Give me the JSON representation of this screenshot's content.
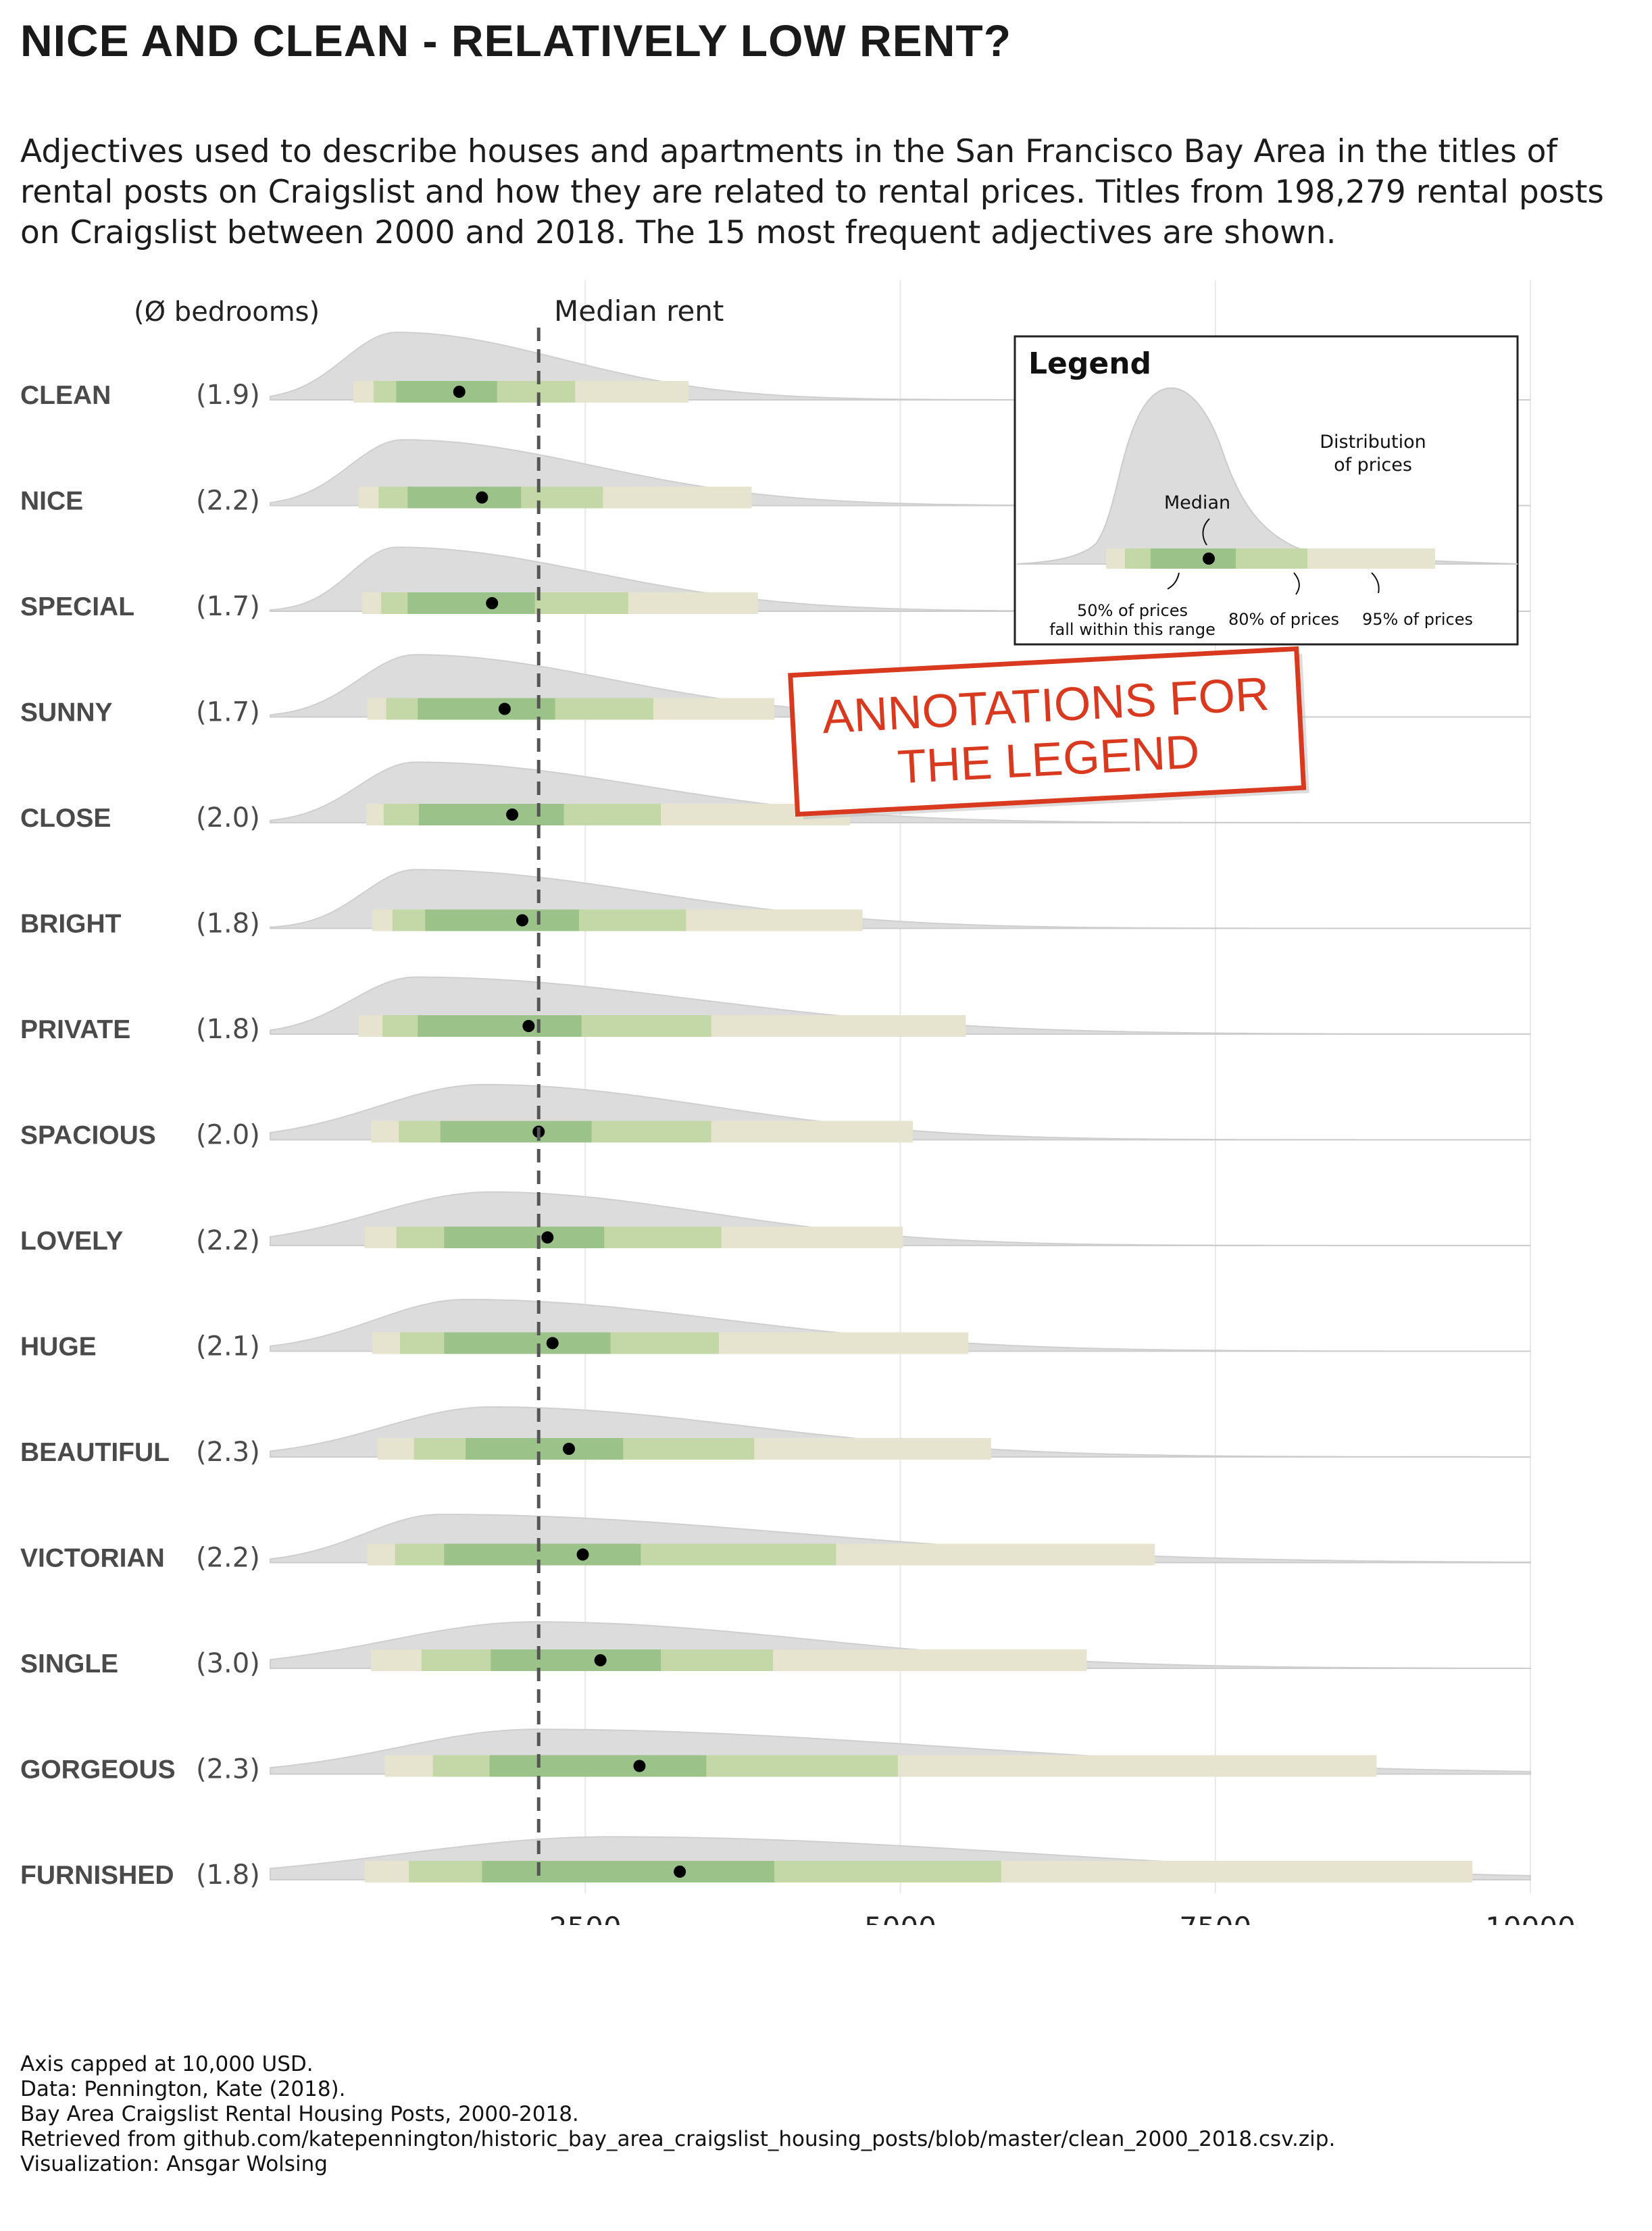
{
  "title": "NICE AND CLEAN - RELATIVELY LOW RENT?",
  "subtitle": "Adjectives used to describe houses and apartments in the San Francisco Bay Area in the titles of rental posts on Craigslist and how they are related to rental prices. Titles from 198,279 rental posts on Craigslist between 2000 and 2018. The 15 most frequent adjectives are shown.",
  "column_header": "(Ø bedrooms)",
  "median_label": "Median rent",
  "legend": {
    "title": "Legend",
    "distribution_label": [
      "Distribution",
      "of prices"
    ],
    "median_label": "Median",
    "range50_label": [
      "50% of prices",
      "fall within this range"
    ],
    "range80_label": "80% of prices",
    "range95_label": "95% of prices"
  },
  "stamp": {
    "lines": [
      "ANNOTATIONS FOR",
      "THE LEGEND"
    ],
    "color": "#d93a1f"
  },
  "colors": {
    "range95": "#e6e4cf",
    "range80": "#c3d7a7",
    "range50": "#9bc289",
    "density": "#dcdcdc",
    "median_line": "#555555",
    "grid": "#e8e8e8"
  },
  "caption": [
    "Axis capped at 10,000 USD.",
    "Data: Pennington, Kate (2018).",
    "Bay Area Craigslist Rental Housing Posts, 2000-2018.",
    "Retrieved from github.com/katepennington/historic_bay_area_craigslist_housing_posts/blob/master/clean_2000_2018.csv.zip.",
    "Visualization: Ansgar Wolsing"
  ],
  "chart_data": {
    "type": "interval-density",
    "xlabel": "",
    "ylabel": "",
    "xlim": [
      0,
      10000
    ],
    "x_ticks": [
      2500,
      5000,
      7500,
      10000
    ],
    "tick_labels": [
      "2500",
      "5000",
      "7500",
      "10000"
    ],
    "grid": true,
    "overall_median": 2130,
    "rows": [
      {
        "label": "CLEAN",
        "bedrooms": "(1.9)",
        "range95": [
          660,
          3320
        ],
        "range80": [
          820,
          2420
        ],
        "range50": [
          1000,
          1800
        ],
        "median": 1500,
        "peak": 1000
      },
      {
        "label": "NICE",
        "bedrooms": "(2.2)",
        "range95": [
          700,
          3820
        ],
        "range80": [
          860,
          2640
        ],
        "range50": [
          1090,
          1990
        ],
        "median": 1680,
        "peak": 1050
      },
      {
        "label": "SPECIAL",
        "bedrooms": "(1.7)",
        "range95": [
          730,
          3870
        ],
        "range80": [
          880,
          2840
        ],
        "range50": [
          1090,
          2100
        ],
        "median": 1760,
        "peak": 1000
      },
      {
        "label": "SUNNY",
        "bedrooms": "(1.7)",
        "range95": [
          770,
          4000
        ],
        "range80": [
          920,
          3040
        ],
        "range50": [
          1170,
          2260
        ],
        "median": 1860,
        "peak": 1150
      },
      {
        "label": "CLOSE",
        "bedrooms": "(2.0)",
        "range95": [
          760,
          4600
        ],
        "range80": [
          900,
          3100
        ],
        "range50": [
          1180,
          2330
        ],
        "median": 1920,
        "peak": 1150
      },
      {
        "label": "BRIGHT",
        "bedrooms": "(1.8)",
        "range95": [
          810,
          4700
        ],
        "range80": [
          970,
          3300
        ],
        "range50": [
          1230,
          2450
        ],
        "median": 2000,
        "peak": 1150
      },
      {
        "label": "PRIVATE",
        "bedrooms": "(1.8)",
        "range95": [
          700,
          5520
        ],
        "range80": [
          890,
          3500
        ],
        "range50": [
          1170,
          2470
        ],
        "median": 2050,
        "peak": 1150
      },
      {
        "label": "SPACIOUS",
        "bedrooms": "(2.0)",
        "range95": [
          800,
          5100
        ],
        "range80": [
          1020,
          3500
        ],
        "range50": [
          1350,
          2550
        ],
        "median": 2130,
        "peak": 1700
      },
      {
        "label": "LOVELY",
        "bedrooms": "(2.2)",
        "range95": [
          750,
          5020
        ],
        "range80": [
          1000,
          3580
        ],
        "range50": [
          1380,
          2650
        ],
        "median": 2200,
        "peak": 1750
      },
      {
        "label": "HUGE",
        "bedrooms": "(2.1)",
        "range95": [
          810,
          5540
        ],
        "range80": [
          1030,
          3560
        ],
        "range50": [
          1380,
          2700
        ],
        "median": 2240,
        "peak": 1550
      },
      {
        "label": "BEAUTIFUL",
        "bedrooms": "(2.3)",
        "range95": [
          850,
          5720
        ],
        "range80": [
          1140,
          3840
        ],
        "range50": [
          1550,
          2800
        ],
        "median": 2370,
        "peak": 1750
      },
      {
        "label": "VICTORIAN",
        "bedrooms": "(2.2)",
        "range95": [
          770,
          7020
        ],
        "range80": [
          990,
          4490
        ],
        "range50": [
          1380,
          2940
        ],
        "median": 2480,
        "peak": 1350
      },
      {
        "label": "SINGLE",
        "bedrooms": "(3.0)",
        "range95": [
          800,
          6480
        ],
        "range80": [
          1200,
          3990
        ],
        "range50": [
          1750,
          3100
        ],
        "median": 2620,
        "peak": 2100
      },
      {
        "label": "GORGEOUS",
        "bedrooms": "(2.3)",
        "range95": [
          910,
          8780
        ],
        "range80": [
          1290,
          4980
        ],
        "range50": [
          1740,
          3460
        ],
        "median": 2930,
        "peak": 2100
      },
      {
        "label": "FURNISHED",
        "bedrooms": "(1.8)",
        "range95": [
          750,
          9540
        ],
        "range80": [
          1100,
          5800
        ],
        "range50": [
          1680,
          4000
        ],
        "median": 3250,
        "peak": 2700
      }
    ]
  }
}
